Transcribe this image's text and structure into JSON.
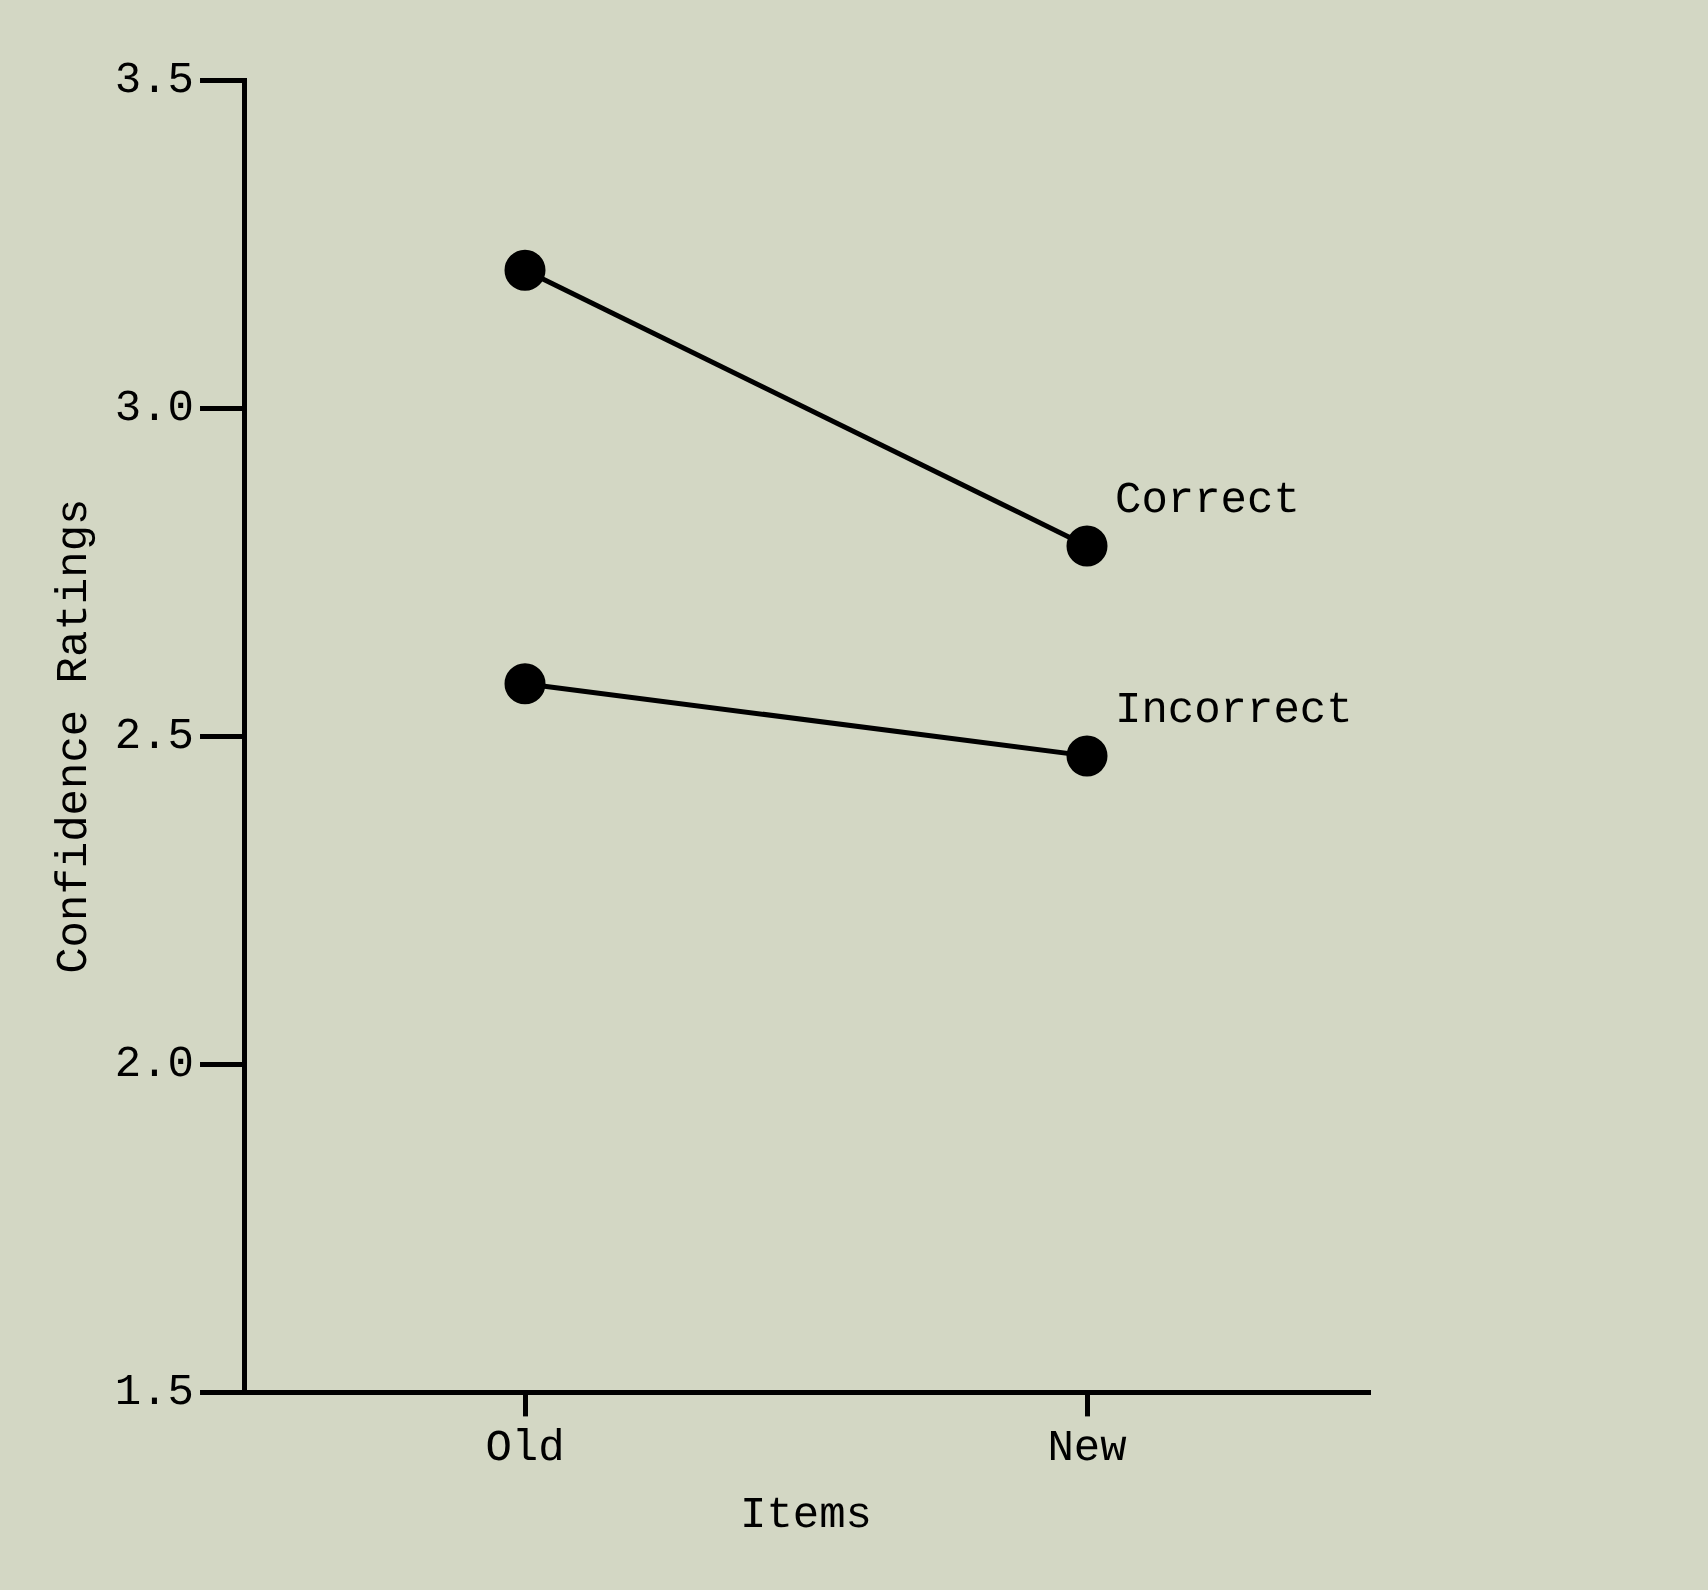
{
  "chart_data": {
    "type": "line",
    "xlabel": "Items",
    "ylabel": "Confidence Ratings",
    "categories": [
      "Old",
      "New"
    ],
    "series": [
      {
        "name": "Correct",
        "color": "#000000",
        "values": [
          3.21,
          2.79
        ]
      },
      {
        "name": "Incorrect",
        "color": "#000000",
        "values": [
          2.58,
          2.47
        ]
      }
    ],
    "ylim": [
      1.5,
      3.5
    ],
    "yticks": [
      {
        "value": 1.5,
        "label": "1.5"
      },
      {
        "value": 2,
        "label": "2.0"
      },
      {
        "value": 2.5,
        "label": "2.5"
      },
      {
        "value": 3,
        "label": "3.0"
      },
      {
        "value": 3.5,
        "label": "3.5"
      }
    ],
    "grid": false,
    "legend": false,
    "marker": "circle",
    "line_style": "solid"
  }
}
